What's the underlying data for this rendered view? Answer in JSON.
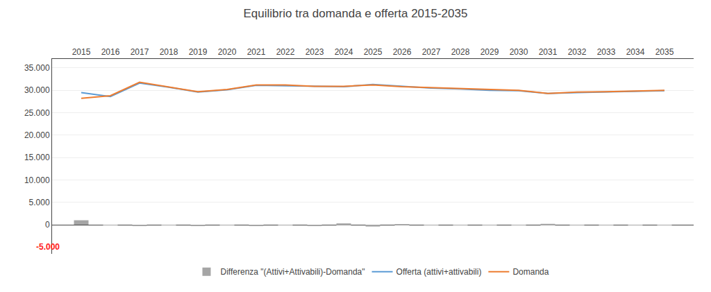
{
  "chart_data": {
    "type": "line",
    "title": "Equilibrio tra domanda e offerta 2015-2035",
    "x": [
      2015,
      2016,
      2017,
      2018,
      2019,
      2020,
      2021,
      2022,
      2023,
      2024,
      2025,
      2026,
      2027,
      2028,
      2029,
      2030,
      2031,
      2032,
      2033,
      2034,
      2035
    ],
    "series": [
      {
        "name": "Differenza \"(Attivi+Attivabili)-Domanda\"",
        "type": "bar",
        "color": "#a5a5a5",
        "values": [
          1000,
          -100,
          -200,
          -50,
          -300,
          -150,
          -200,
          -100,
          -200,
          300,
          -400,
          100,
          -100,
          -100,
          -100,
          -100,
          200,
          -100,
          -100,
          -100,
          -100
        ]
      },
      {
        "name": "Offerta (attivi+attivabili)",
        "type": "line",
        "color": "#5b9bd5",
        "values": [
          29500,
          28600,
          31600,
          30700,
          29600,
          30100,
          31100,
          31000,
          30800,
          30800,
          31300,
          30900,
          30500,
          30300,
          30000,
          29900,
          29300,
          29500,
          29600,
          29800,
          29900
        ]
      },
      {
        "name": "Domanda",
        "type": "line",
        "color": "#ed7d31",
        "values": [
          28200,
          28800,
          31800,
          30700,
          29700,
          30200,
          31200,
          31200,
          30900,
          30900,
          31200,
          30800,
          30600,
          30400,
          30100,
          30000,
          29300,
          29600,
          29700,
          29900,
          30000
        ]
      }
    ],
    "xlim": [
      2014,
      2036
    ],
    "xticks": [
      2015,
      2016,
      2017,
      2018,
      2019,
      2020,
      2021,
      2022,
      2023,
      2024,
      2025,
      2026,
      2027,
      2028,
      2029,
      2030,
      2031,
      2032,
      2033,
      2034,
      2035
    ],
    "ylim": [
      -6500,
      37000
    ],
    "yticks": [
      0,
      {
        "value": 5000,
        "label": "5.000"
      },
      {
        "value": 10000,
        "label": "10.000"
      },
      {
        "value": 15000,
        "label": "15.000"
      },
      {
        "value": 20000,
        "label": "20.000"
      },
      {
        "value": 25000,
        "label": "25.000"
      },
      {
        "value": 30000,
        "label": "30.000"
      },
      {
        "value": 35000,
        "label": "35.000"
      }
    ],
    "grid": true,
    "legend": "bottom",
    "annotations": [
      {
        "text": "-5.000",
        "x": 2014.3,
        "y": -5000,
        "color": "#ff2020"
      }
    ]
  }
}
